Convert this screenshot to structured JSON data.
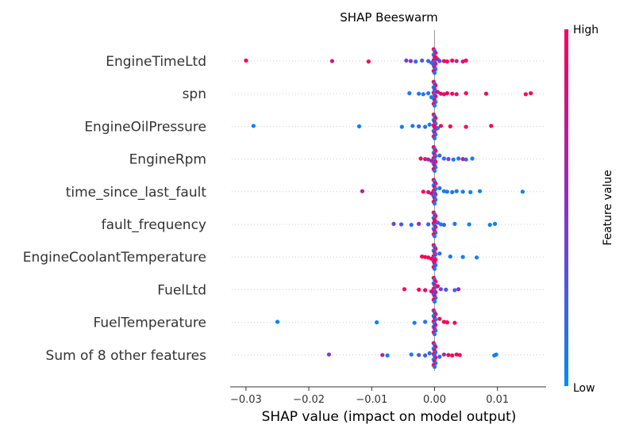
{
  "chart_data": {
    "type": "scatter",
    "subtype": "shap-beeswarm",
    "title": "SHAP Beeswarm",
    "xlabel": "SHAP value (impact on model output)",
    "xlim": [
      -0.0325,
      0.0175
    ],
    "xticks": [
      -0.03,
      -0.02,
      -0.01,
      0.0,
      0.01
    ],
    "xtick_labels": [
      "−0.03",
      "−0.02",
      "−0.01",
      "0.00",
      "0.01"
    ],
    "colorbar": {
      "label": "Feature value",
      "high": "High",
      "low": "Low",
      "high_color": "#ff0052",
      "low_color": "#008afb",
      "mid_color": "#8a33c7"
    },
    "features": [
      {
        "name": "EngineTimeLtd",
        "points": [
          [
            -0.03,
            1
          ],
          [
            -0.0163,
            0.75
          ],
          [
            -0.0105,
            1
          ],
          [
            -0.0045,
            0.4
          ],
          [
            -0.0038,
            0.55
          ],
          [
            -0.003,
            0.2
          ],
          [
            -0.002,
            0.3
          ],
          [
            -0.001,
            0.2
          ],
          [
            -0.0005,
            0.15
          ],
          [
            0.0,
            0.5
          ],
          [
            0.0002,
            0.9
          ],
          [
            0.0005,
            0.6
          ],
          [
            0.0008,
            0.35
          ],
          [
            0.0015,
            0.85
          ],
          [
            0.002,
            1
          ],
          [
            0.0028,
            1
          ],
          [
            0.0035,
            0.6
          ],
          [
            0.0045,
            0.8
          ],
          [
            0.005,
            1
          ]
        ]
      },
      {
        "name": "spn",
        "points": [
          [
            -0.004,
            0.1
          ],
          [
            -0.0025,
            0.1
          ],
          [
            -0.0018,
            0.15
          ],
          [
            -0.001,
            0.1
          ],
          [
            -0.0005,
            0.1
          ],
          [
            0.0,
            0.2
          ],
          [
            0.0005,
            0.8
          ],
          [
            0.001,
            0.85
          ],
          [
            0.0015,
            0.9
          ],
          [
            0.002,
            0.95
          ],
          [
            0.0028,
            1
          ],
          [
            0.0035,
            0.85
          ],
          [
            0.005,
            1
          ],
          [
            0.0082,
            1
          ],
          [
            0.0145,
            1
          ],
          [
            0.0153,
            1
          ]
        ]
      },
      {
        "name": "EngineOilPressure",
        "points": [
          [
            -0.0288,
            0.05
          ],
          [
            -0.012,
            0.05
          ],
          [
            -0.0052,
            0.05
          ],
          [
            -0.0035,
            0.1
          ],
          [
            -0.0025,
            0.15
          ],
          [
            -0.0015,
            0.1
          ],
          [
            -0.0008,
            0.1
          ],
          [
            0.0,
            0.95
          ],
          [
            0.0005,
            0.2
          ],
          [
            0.001,
            0.95
          ],
          [
            0.0025,
            1
          ],
          [
            0.005,
            1
          ],
          [
            0.009,
            1
          ]
        ]
      },
      {
        "name": "EngineRpm",
        "points": [
          [
            -0.0022,
            1
          ],
          [
            -0.0015,
            0.7
          ],
          [
            -0.001,
            0.6
          ],
          [
            -0.0005,
            0.55
          ],
          [
            0.0,
            0.6
          ],
          [
            0.0008,
            0.2
          ],
          [
            0.0015,
            0.15
          ],
          [
            0.0022,
            0.4
          ],
          [
            0.003,
            0.1
          ],
          [
            0.0038,
            0.15
          ],
          [
            0.0045,
            0.7
          ],
          [
            0.005,
            0.2
          ],
          [
            0.006,
            0.05
          ]
        ]
      },
      {
        "name": "time_since_last_fault",
        "points": [
          [
            -0.0115,
            0.7
          ],
          [
            -0.0018,
            1
          ],
          [
            -0.001,
            0.85
          ],
          [
            -0.0005,
            0.8
          ],
          [
            0.0,
            0.2
          ],
          [
            0.0008,
            0.1
          ],
          [
            0.0015,
            0.1
          ],
          [
            0.002,
            0.1
          ],
          [
            0.0028,
            0.1
          ],
          [
            0.0035,
            0.1
          ],
          [
            0.0045,
            0.1
          ],
          [
            0.0057,
            0.05
          ],
          [
            0.0072,
            0.05
          ],
          [
            0.014,
            0.05
          ]
        ]
      },
      {
        "name": "fault_frequency",
        "points": [
          [
            -0.0065,
            0.4
          ],
          [
            -0.0053,
            0.3
          ],
          [
            -0.0037,
            0.15
          ],
          [
            -0.0025,
            0.6
          ],
          [
            -0.001,
            0.2
          ],
          [
            0.0,
            0.95
          ],
          [
            0.0005,
            0.3
          ],
          [
            0.001,
            0.1
          ],
          [
            0.0015,
            0.2
          ],
          [
            0.0032,
            0.1
          ],
          [
            0.0055,
            0.05
          ],
          [
            0.0088,
            0.05
          ],
          [
            0.0096,
            0.05
          ]
        ]
      },
      {
        "name": "EngineCoolantTemperature",
        "points": [
          [
            -0.002,
            1
          ],
          [
            -0.0015,
            0.95
          ],
          [
            -0.001,
            1
          ],
          [
            -0.0005,
            0.9
          ],
          [
            0.0,
            0.95
          ],
          [
            0.0008,
            0.2
          ],
          [
            0.0025,
            0.1
          ],
          [
            0.0045,
            0.05
          ],
          [
            0.0067,
            0.05
          ]
        ]
      },
      {
        "name": "FuelLtd",
        "points": [
          [
            -0.0048,
            1
          ],
          [
            -0.0025,
            1
          ],
          [
            -0.0015,
            0.9
          ],
          [
            -0.0005,
            0.9
          ],
          [
            0.0,
            0.5
          ],
          [
            0.0005,
            0.8
          ],
          [
            0.001,
            0.4
          ],
          [
            0.0018,
            0.3
          ],
          [
            0.0032,
            0.2
          ],
          [
            0.0038,
            0.6
          ]
        ]
      },
      {
        "name": "FuelTemperature",
        "points": [
          [
            -0.025,
            0.05
          ],
          [
            -0.0092,
            0.05
          ],
          [
            -0.0032,
            0.05
          ],
          [
            -0.0015,
            0.1
          ],
          [
            0.0,
            0.5
          ],
          [
            0.0008,
            0.95
          ],
          [
            0.0015,
            0.9
          ],
          [
            0.002,
            1
          ],
          [
            0.0032,
            1
          ]
        ]
      },
      {
        "name": "Sum of 8 other features",
        "points": [
          [
            -0.0168,
            0.45
          ],
          [
            -0.0083,
            0.65
          ],
          [
            -0.0075,
            0.1
          ],
          [
            -0.0037,
            0.1
          ],
          [
            -0.0025,
            0.3
          ],
          [
            -0.0015,
            0.2
          ],
          [
            -0.0008,
            0.2
          ],
          [
            0.0,
            0.3
          ],
          [
            0.0008,
            0.2
          ],
          [
            0.0015,
            0.7
          ],
          [
            0.0022,
            0.9
          ],
          [
            0.0028,
            1
          ],
          [
            0.0035,
            0.9
          ],
          [
            0.004,
            1
          ],
          [
            0.0095,
            0.05
          ],
          [
            0.0098,
            0.05
          ]
        ]
      }
    ]
  }
}
